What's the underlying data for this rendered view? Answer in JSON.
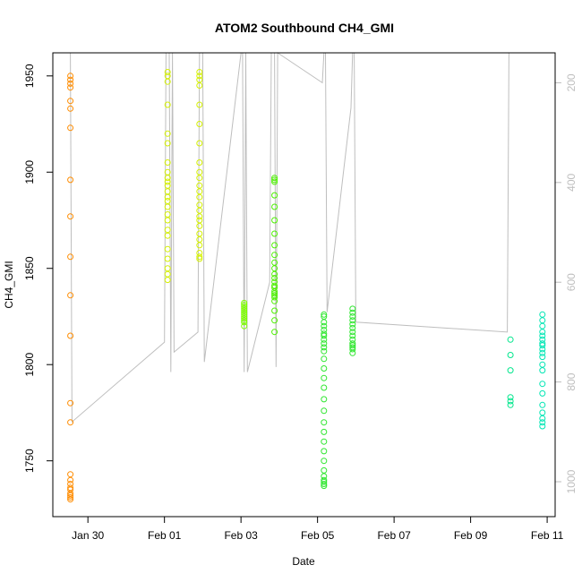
{
  "chart_data": {
    "type": "scatter",
    "title": "ATOM2 Southbound CH4_GMI",
    "xlabel": "Date",
    "ylabel": "CH4_GMI",
    "x_is_date": true,
    "xlim": [
      "2017-01-29T02:00",
      "2017-02-11T05:00"
    ],
    "ylim": [
      1721,
      1962
    ],
    "x_ticks": [
      {
        "date": "2017-01-30T00:00",
        "label": "Jan 30"
      },
      {
        "date": "2017-02-01T00:00",
        "label": "Feb 01"
      },
      {
        "date": "2017-02-03T00:00",
        "label": "Feb 03"
      },
      {
        "date": "2017-02-05T00:00",
        "label": "Feb 05"
      },
      {
        "date": "2017-02-07T00:00",
        "label": "Feb 07"
      },
      {
        "date": "2017-02-09T00:00",
        "label": "Feb 09"
      },
      {
        "date": "2017-02-11T00:00",
        "label": "Feb 11"
      }
    ],
    "y_ticks": [
      1750,
      1800,
      1850,
      1900,
      1950
    ],
    "secondary_axis": {
      "side": "right",
      "reversed": true,
      "ylim": [
        1070,
        140
      ],
      "ticks": [
        200,
        400,
        600,
        800,
        1000
      ],
      "color": "#bebebe"
    },
    "series": [
      {
        "color": "#ff8c00",
        "x": [
          "2017-01-29T13:00",
          "2017-01-29T13:00",
          "2017-01-29T13:00",
          "2017-01-29T13:00",
          "2017-01-29T13:00",
          "2017-01-29T13:00",
          "2017-01-29T13:00",
          "2017-01-29T13:00",
          "2017-01-29T13:00",
          "2017-01-29T13:00",
          "2017-01-29T13:00",
          "2017-01-29T13:00",
          "2017-01-29T13:00",
          "2017-01-29T13:00",
          "2017-01-29T13:00",
          "2017-01-29T13:00",
          "2017-01-29T13:00",
          "2017-01-29T13:00",
          "2017-01-29T13:00",
          "2017-01-29T13:00",
          "2017-01-29T13:00",
          "2017-01-29T13:00",
          "2017-01-29T13:00"
        ],
        "y": [
          1950,
          1948,
          1946,
          1944,
          1937,
          1933,
          1923,
          1896,
          1877,
          1856,
          1836,
          1815,
          1780,
          1770,
          1743,
          1740,
          1738,
          1736,
          1735,
          1733,
          1732,
          1731,
          1730
        ]
      },
      {
        "color": "#d4f000",
        "x": [
          "2017-02-01T02:00",
          "2017-02-01T02:00",
          "2017-02-01T02:00",
          "2017-02-01T02:00",
          "2017-02-01T02:00",
          "2017-02-01T02:00",
          "2017-02-01T02:00",
          "2017-02-01T02:00",
          "2017-02-01T02:00",
          "2017-02-01T02:00",
          "2017-02-01T02:00",
          "2017-02-01T02:00",
          "2017-02-01T02:00",
          "2017-02-01T02:00",
          "2017-02-01T02:00",
          "2017-02-01T02:00",
          "2017-02-01T02:00",
          "2017-02-01T02:00",
          "2017-02-01T02:00",
          "2017-02-01T02:00",
          "2017-02-01T02:00",
          "2017-02-01T02:00",
          "2017-02-01T02:00",
          "2017-02-01T02:00"
        ],
        "y": [
          1952,
          1950,
          1947,
          1935,
          1920,
          1915,
          1905,
          1900,
          1897,
          1895,
          1893,
          1890,
          1887,
          1885,
          1882,
          1878,
          1875,
          1870,
          1867,
          1860,
          1855,
          1850,
          1847,
          1844
        ]
      },
      {
        "color": "#d4f000",
        "x": [
          "2017-02-01T22:00",
          "2017-02-01T22:00",
          "2017-02-01T22:00",
          "2017-02-01T22:00",
          "2017-02-01T22:00",
          "2017-02-01T22:00",
          "2017-02-01T22:00",
          "2017-02-01T22:00",
          "2017-02-01T22:00",
          "2017-02-01T22:00",
          "2017-02-01T22:00",
          "2017-02-01T22:00",
          "2017-02-01T22:00",
          "2017-02-01T22:00",
          "2017-02-01T22:00",
          "2017-02-01T22:00",
          "2017-02-01T22:00",
          "2017-02-01T22:00",
          "2017-02-01T22:00",
          "2017-02-01T22:00",
          "2017-02-01T22:00",
          "2017-02-01T22:00",
          "2017-02-01T22:00",
          "2017-02-01T22:00"
        ],
        "y": [
          1952,
          1950,
          1948,
          1945,
          1935,
          1925,
          1915,
          1905,
          1900,
          1897,
          1893,
          1890,
          1887,
          1883,
          1880,
          1877,
          1875,
          1872,
          1868,
          1865,
          1862,
          1858,
          1856,
          1855
        ]
      },
      {
        "color": "#7cfc00",
        "x": [
          "2017-02-03T02:00",
          "2017-02-03T02:00",
          "2017-02-03T02:00",
          "2017-02-03T02:00",
          "2017-02-03T02:00",
          "2017-02-03T02:00",
          "2017-02-03T02:00",
          "2017-02-03T02:00",
          "2017-02-03T02:00",
          "2017-02-03T02:00",
          "2017-02-03T02:00",
          "2017-02-03T02:00"
        ],
        "y": [
          1832,
          1831,
          1830,
          1829,
          1828,
          1827,
          1826,
          1825,
          1824,
          1823,
          1822,
          1820
        ]
      },
      {
        "color": "#4cf000",
        "x": [
          "2017-02-03T21:00",
          "2017-02-03T21:00",
          "2017-02-03T21:00",
          "2017-02-03T21:00",
          "2017-02-03T21:00",
          "2017-02-03T21:00",
          "2017-02-03T21:00",
          "2017-02-03T21:00",
          "2017-02-03T21:00",
          "2017-02-03T21:00",
          "2017-02-03T21:00",
          "2017-02-03T21:00",
          "2017-02-03T21:00",
          "2017-02-03T21:00",
          "2017-02-03T21:00",
          "2017-02-03T21:00",
          "2017-02-03T21:00",
          "2017-02-03T21:00",
          "2017-02-03T21:00",
          "2017-02-03T21:00",
          "2017-02-03T21:00",
          "2017-02-03T21:00",
          "2017-02-03T21:00",
          "2017-02-03T21:00"
        ],
        "y": [
          1897,
          1896,
          1895,
          1888,
          1882,
          1875,
          1868,
          1862,
          1857,
          1853,
          1850,
          1847,
          1845,
          1843,
          1841,
          1840,
          1838,
          1837,
          1836,
          1835,
          1833,
          1828,
          1823,
          1817
        ]
      },
      {
        "color": "#2ee62e",
        "x": [
          "2017-02-05T04:00",
          "2017-02-05T04:00",
          "2017-02-05T04:00",
          "2017-02-05T04:00",
          "2017-02-05T04:00",
          "2017-02-05T04:00",
          "2017-02-05T04:00",
          "2017-02-05T04:00",
          "2017-02-05T04:00",
          "2017-02-05T04:00",
          "2017-02-05T04:00",
          "2017-02-05T04:00",
          "2017-02-05T04:00",
          "2017-02-05T04:00",
          "2017-02-05T04:00",
          "2017-02-05T04:00",
          "2017-02-05T04:00",
          "2017-02-05T04:00",
          "2017-02-05T04:00",
          "2017-02-05T04:00",
          "2017-02-05T04:00",
          "2017-02-05T04:00",
          "2017-02-05T04:00",
          "2017-02-05T04:00",
          "2017-02-05T04:00",
          "2017-02-05T04:00",
          "2017-02-05T04:00",
          "2017-02-05T04:00"
        ],
        "y": [
          1826,
          1825,
          1822,
          1820,
          1818,
          1816,
          1815,
          1813,
          1811,
          1809,
          1807,
          1803,
          1798,
          1793,
          1788,
          1782,
          1776,
          1770,
          1765,
          1760,
          1755,
          1750,
          1745,
          1742,
          1740,
          1739,
          1738,
          1737
        ]
      },
      {
        "color": "#2ee62e",
        "x": [
          "2017-02-05T22:00",
          "2017-02-05T22:00",
          "2017-02-05T22:00",
          "2017-02-05T22:00",
          "2017-02-05T22:00",
          "2017-02-05T22:00",
          "2017-02-05T22:00",
          "2017-02-05T22:00",
          "2017-02-05T22:00",
          "2017-02-05T22:00",
          "2017-02-05T22:00",
          "2017-02-05T22:00",
          "2017-02-05T22:00",
          "2017-02-05T22:00"
        ],
        "y": [
          1829,
          1827,
          1825,
          1823,
          1821,
          1819,
          1817,
          1815,
          1813,
          1811,
          1810,
          1809,
          1808,
          1806
        ]
      },
      {
        "color": "#00e68c",
        "x": [
          "2017-02-10T01:00",
          "2017-02-10T01:00",
          "2017-02-10T01:00",
          "2017-02-10T01:00",
          "2017-02-10T01:00",
          "2017-02-10T01:00"
        ],
        "y": [
          1813,
          1805,
          1797,
          1783,
          1781,
          1779
        ]
      },
      {
        "color": "#00e6b4",
        "x": [
          "2017-02-10T21:00",
          "2017-02-10T21:00",
          "2017-02-10T21:00",
          "2017-02-10T21:00",
          "2017-02-10T21:00",
          "2017-02-10T21:00",
          "2017-02-10T21:00",
          "2017-02-10T21:00",
          "2017-02-10T21:00",
          "2017-02-10T21:00",
          "2017-02-10T21:00",
          "2017-02-10T21:00",
          "2017-02-10T21:00",
          "2017-02-10T21:00",
          "2017-02-10T21:00",
          "2017-02-10T21:00",
          "2017-02-10T21:00",
          "2017-02-10T21:00",
          "2017-02-10T21:00",
          "2017-02-10T21:00"
        ],
        "y": [
          1826,
          1823,
          1820,
          1817,
          1815,
          1813,
          1811,
          1810,
          1808,
          1806,
          1804,
          1800,
          1797,
          1790,
          1785,
          1779,
          1775,
          1772,
          1770,
          1768
        ]
      }
    ],
    "altitude_line": {
      "color": "#bebebe",
      "x": [
        "2017-01-29T12:00",
        "2017-01-29T13:00",
        "2017-01-29T14:00",
        "2017-02-01T00:00",
        "2017-02-01T01:00",
        "2017-02-01T02:00",
        "2017-02-01T03:00",
        "2017-02-01T04:00",
        "2017-02-01T05:00",
        "2017-02-01T06:00",
        "2017-02-01T21:00",
        "2017-02-01T22:00",
        "2017-02-01T23:00",
        "2017-02-02T00:00",
        "2017-02-02T01:00",
        "2017-02-03T00:00",
        "2017-02-03T01:00",
        "2017-02-03T02:00",
        "2017-02-03T03:00",
        "2017-02-03T04:00",
        "2017-02-03T18:00",
        "2017-02-03T19:00",
        "2017-02-03T20:00",
        "2017-02-03T21:00",
        "2017-02-03T22:00",
        "2017-02-03T23:00",
        "2017-02-05T03:00",
        "2017-02-05T04:00",
        "2017-02-05T05:00",
        "2017-02-05T06:00",
        "2017-02-05T21:00",
        "2017-02-05T22:00",
        "2017-02-05T23:00",
        "2017-02-06T00:00",
        "2017-02-09T23:00",
        "2017-02-10T00:00",
        "2017-02-10T20:00",
        "2017-02-10T21:00",
        "2017-02-10T22:00",
        "2017-02-10T23:00"
      ],
      "y": [
        140,
        140,
        880,
        720,
        140,
        140,
        140,
        780,
        140,
        740,
        700,
        140,
        140,
        140,
        760,
        140,
        140,
        780,
        140,
        780,
        600,
        140,
        140,
        140,
        770,
        140,
        200,
        140,
        140,
        660,
        250,
        140,
        140,
        680,
        700,
        140,
        140,
        140,
        140,
        140
      ]
    }
  }
}
